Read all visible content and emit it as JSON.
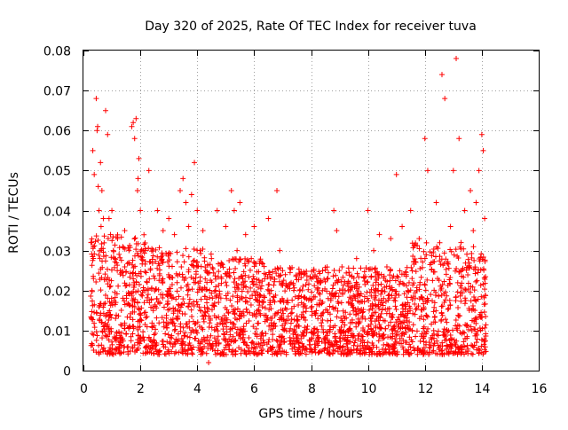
{
  "chart_data": {
    "type": "scatter",
    "title": "Day 320 of 2025, Rate Of TEC Index for receiver tuva",
    "xlabel": "GPS time / hours",
    "ylabel": "ROTI / TECUs",
    "xlim": [
      0,
      16
    ],
    "ylim": [
      0,
      0.08
    ],
    "x_ticks": [
      0,
      2,
      4,
      6,
      8,
      10,
      12,
      14,
      16
    ],
    "y_ticks": [
      0,
      0.01,
      0.02,
      0.03,
      0.04,
      0.05,
      0.06,
      0.07,
      0.08
    ],
    "x_tick_labels": [
      "0",
      "2",
      "4",
      "6",
      "8",
      "10",
      "12",
      "14",
      "16"
    ],
    "y_tick_labels": [
      "0",
      "0.01",
      "0.02",
      "0.03",
      "0.04",
      "0.05",
      "0.06",
      "0.07",
      "0.08"
    ],
    "grid": true,
    "marker": "+",
    "series_color": "#ff0000",
    "x_range_of_data": [
      0.25,
      14.15
    ],
    "series": [
      {
        "x": [
          0.3,
          0.33,
          0.38,
          0.45,
          0.48,
          0.5,
          0.52,
          0.55,
          0.6,
          0.62,
          0.65,
          0.7,
          0.78,
          0.85,
          0.9,
          0.95,
          1.0,
          1.05,
          1.1,
          1.2,
          1.3,
          1.45,
          1.6,
          1.7,
          1.75,
          1.8,
          1.85,
          1.9,
          1.92,
          1.95,
          2.0,
          2.1,
          2.3,
          2.6,
          2.8,
          3.0,
          3.2,
          3.4,
          3.5,
          3.6,
          3.7,
          3.8,
          3.9,
          4.0,
          4.1,
          4.2,
          4.3,
          4.4,
          4.5,
          4.7,
          5.0,
          5.2,
          5.3,
          5.4,
          5.5,
          5.7,
          5.9,
          6.0,
          6.2,
          6.5,
          6.8,
          6.9,
          7.0,
          7.3,
          7.6,
          8.0,
          8.4,
          8.8,
          8.9,
          9.2,
          9.6,
          10.0,
          10.2,
          10.4,
          10.8,
          11.0,
          11.2,
          11.5,
          11.8,
          12.0,
          12.1,
          12.4,
          12.6,
          12.7,
          12.9,
          13.0,
          13.1,
          13.2,
          13.4,
          13.6,
          13.7,
          13.8,
          13.9,
          14.0,
          14.05,
          14.1
        ],
        "y": [
          0.02,
          0.055,
          0.049,
          0.068,
          0.06,
          0.061,
          0.046,
          0.04,
          0.052,
          0.036,
          0.045,
          0.038,
          0.065,
          0.059,
          0.038,
          0.034,
          0.04,
          0.03,
          0.028,
          0.033,
          0.025,
          0.035,
          0.03,
          0.061,
          0.062,
          0.058,
          0.063,
          0.045,
          0.048,
          0.053,
          0.04,
          0.03,
          0.05,
          0.04,
          0.035,
          0.038,
          0.034,
          0.045,
          0.048,
          0.042,
          0.036,
          0.044,
          0.052,
          0.04,
          0.03,
          0.035,
          0.025,
          0.002,
          0.028,
          0.04,
          0.036,
          0.045,
          0.04,
          0.03,
          0.042,
          0.034,
          0.028,
          0.036,
          0.022,
          0.038,
          0.045,
          0.03,
          0.025,
          0.022,
          0.02,
          0.023,
          0.02,
          0.04,
          0.035,
          0.02,
          0.028,
          0.04,
          0.03,
          0.034,
          0.033,
          0.049,
          0.036,
          0.04,
          0.033,
          0.058,
          0.05,
          0.042,
          0.074,
          0.068,
          0.036,
          0.05,
          0.078,
          0.058,
          0.04,
          0.045,
          0.035,
          0.042,
          0.05,
          0.059,
          0.055,
          0.038
        ]
      }
    ]
  }
}
